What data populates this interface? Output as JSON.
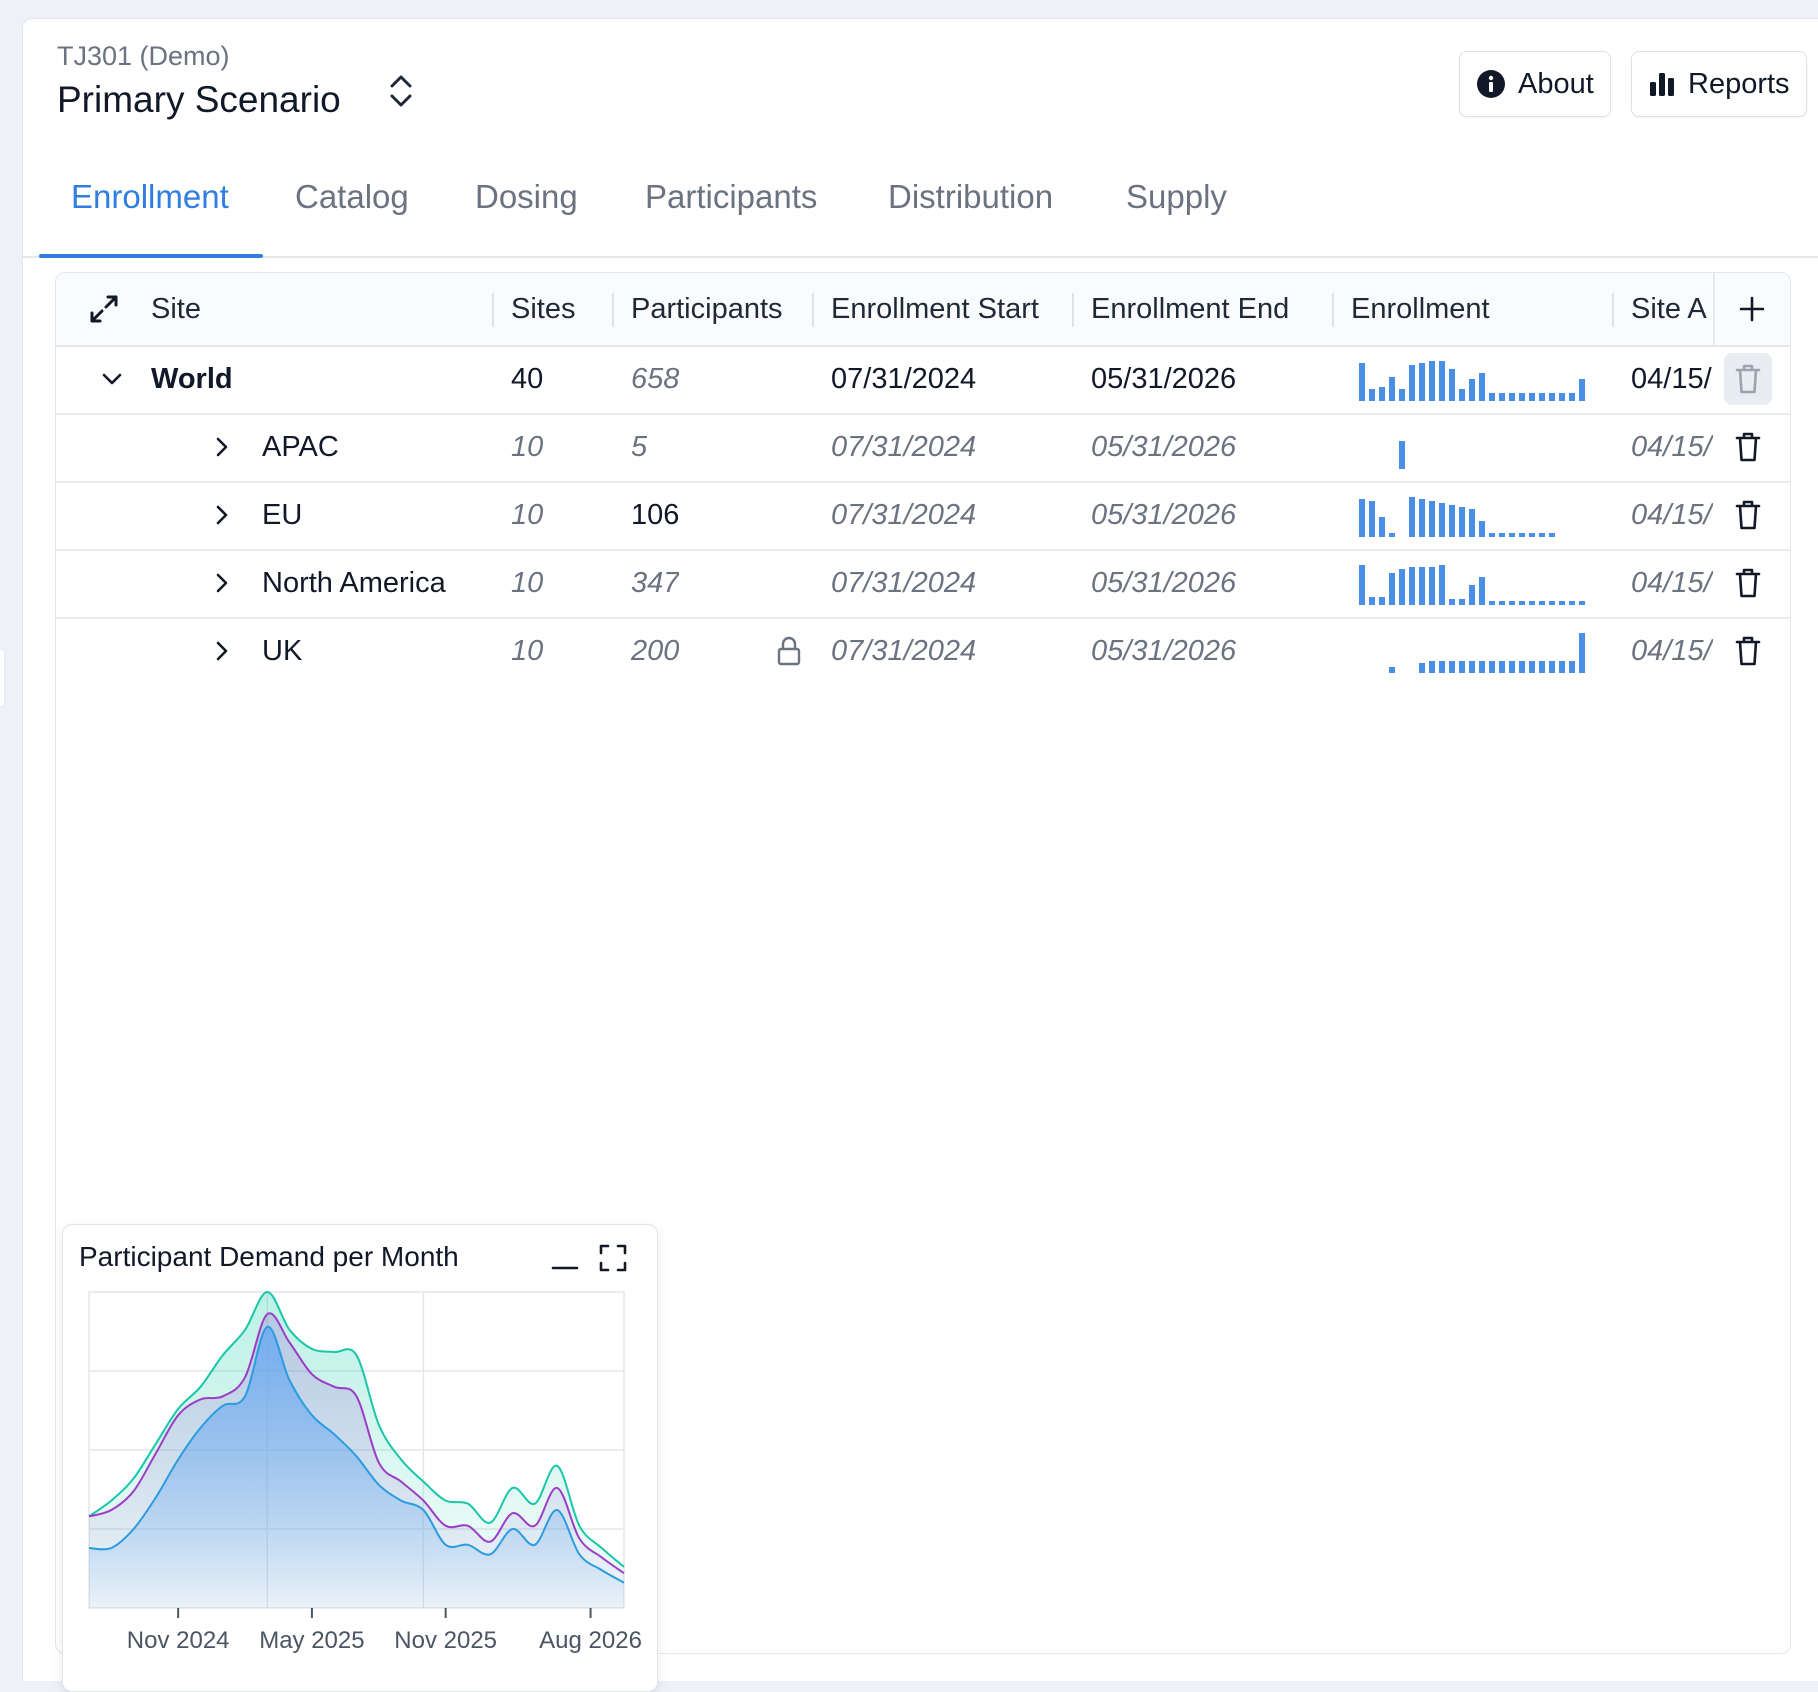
{
  "header": {
    "study": "TJ301 (Demo)",
    "scenario": "Primary Scenario",
    "about_label": "About",
    "reports_label": "Reports"
  },
  "tabs": [
    {
      "label": "Enrollment",
      "active": true
    },
    {
      "label": "Catalog"
    },
    {
      "label": "Dosing"
    },
    {
      "label": "Participants"
    },
    {
      "label": "Distribution"
    },
    {
      "label": "Supply"
    }
  ],
  "grid": {
    "columns": [
      "Site",
      "Sites",
      "Participants",
      "Enrollment Start",
      "Enrollment End",
      "Enrollment",
      "Site A"
    ],
    "rows": [
      {
        "site": "World",
        "sites": "40",
        "participants": "658",
        "start": "07/31/2024",
        "end": "05/31/2026",
        "site_a": "04/15/",
        "spark": [
          0.95,
          0.3,
          0.35,
          0.6,
          0.3,
          0.9,
          0.95,
          1,
          1,
          0.8,
          0.3,
          0.55,
          0.7,
          0.2,
          0.2,
          0.2,
          0.2,
          0.2,
          0.2,
          0.2,
          0.2,
          0.2,
          0.55
        ]
      },
      {
        "site": "APAC",
        "sites": "10",
        "participants": "5",
        "start": "07/31/2024",
        "end": "05/31/2026",
        "site_a": "04/15/",
        "spark": [
          0,
          0,
          0,
          0,
          0.7,
          0,
          0,
          0,
          0,
          0,
          0,
          0,
          0,
          0,
          0,
          0,
          0,
          0,
          0,
          0,
          0,
          0,
          0
        ]
      },
      {
        "site": "EU",
        "sites": "10",
        "participants": "106",
        "start": "07/31/2024",
        "end": "05/31/2026",
        "site_a": "04/15/",
        "spark": [
          0.95,
          0.9,
          0.5,
          0.1,
          0,
          1,
          0.95,
          0.9,
          0.85,
          0.8,
          0.75,
          0.7,
          0.4,
          0.1,
          0.1,
          0.1,
          0.1,
          0.1,
          0.1,
          0.1,
          0,
          0,
          0
        ]
      },
      {
        "site": "North America",
        "sites": "10",
        "participants": "347",
        "start": "07/31/2024",
        "end": "05/31/2026",
        "site_a": "04/15/",
        "spark": [
          1,
          0.2,
          0.2,
          0.8,
          0.9,
          0.95,
          0.95,
          0.95,
          1,
          0.15,
          0.15,
          0.5,
          0.7,
          0.1,
          0.1,
          0.1,
          0.1,
          0.1,
          0.1,
          0.1,
          0.1,
          0.1,
          0.1
        ]
      },
      {
        "site": "UK",
        "sites": "10",
        "participants": "200",
        "start": "07/31/2024",
        "end": "05/31/2026",
        "site_a": "04/15/",
        "locked": true,
        "spark": [
          0,
          0,
          0,
          0.15,
          0,
          0,
          0.25,
          0.3,
          0.3,
          0.3,
          0.3,
          0.3,
          0.3,
          0.3,
          0.3,
          0.3,
          0.3,
          0.3,
          0.3,
          0.3,
          0.3,
          0.3,
          1
        ]
      }
    ]
  },
  "chart": {
    "title": "Participant Demand per Month"
  },
  "chart_data": {
    "type": "area",
    "title": "Participant Demand per Month",
    "xlabel": "",
    "ylabel": "",
    "x_tick_labels": [
      "Nov 2024",
      "May 2025",
      "Nov 2025",
      "Aug 2026"
    ],
    "x_tick_positions": [
      4,
      10,
      16,
      22.5
    ],
    "grid": true,
    "ylim": [
      0,
      100
    ],
    "series": [
      {
        "color": "#19c7a8",
        "values": [
          29,
          34,
          41,
          52,
          63,
          70,
          80,
          88,
          100,
          88,
          82,
          81,
          80,
          58,
          47,
          40,
          34,
          33,
          27,
          38,
          33,
          45,
          26,
          19,
          13
        ]
      },
      {
        "color": "#9b3dc6",
        "values": [
          29,
          31,
          37,
          49,
          61,
          66,
          67,
          73,
          93,
          84,
          74,
          70,
          67,
          46,
          40,
          34,
          26,
          26,
          21,
          30,
          26,
          38,
          22,
          16,
          11
        ]
      },
      {
        "color": "#2b9ce0",
        "values": [
          19,
          19,
          25,
          35,
          47,
          57,
          64,
          67,
          89,
          72,
          61,
          55,
          48,
          39,
          34,
          31,
          20,
          20,
          17,
          25,
          20,
          31,
          17,
          12,
          8
        ]
      }
    ]
  }
}
